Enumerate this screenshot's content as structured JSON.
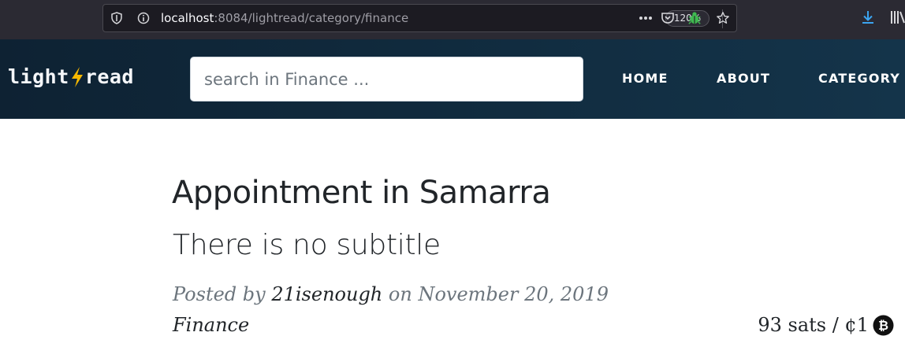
{
  "browser": {
    "url_host": "localhost",
    "url_path": ":8084/lightread/category/finance",
    "zoom": "120%",
    "icons": [
      "shield-icon",
      "info-icon",
      "more-icon",
      "pocket-icon",
      "bug-icon",
      "star-icon",
      "download-icon",
      "library-icon"
    ],
    "colors": {
      "chrome_bg": "#2b2a33",
      "url_bg": "#1c1b22",
      "bug": "#3fb950",
      "download": "#3ba4f0"
    }
  },
  "site": {
    "brand_left": "light",
    "brand_right": "read",
    "brand_bolt_icon": "lightning-bolt-icon",
    "search_placeholder": "search in Finance ...",
    "nav": [
      {
        "label": "HOME"
      },
      {
        "label": "ABOUT"
      },
      {
        "label": "CATEGORY"
      }
    ],
    "colors": {
      "navbar_bg": "#102a3d",
      "bolt": "#f5b800"
    }
  },
  "post": {
    "title": "Appointment in Samarra",
    "subtitle": "There is no subtitle",
    "posted_by_label": "Posted by",
    "author": "21isenough",
    "on_label": "on",
    "date": "November 20, 2019",
    "category": "Finance",
    "price": "93 sats / ¢1",
    "price_icon": "bitcoin-icon"
  }
}
